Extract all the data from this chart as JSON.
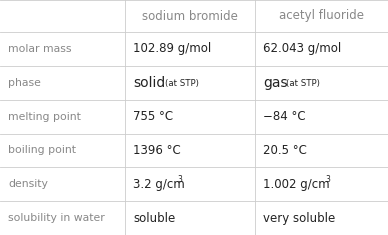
{
  "col_headers": [
    "",
    "sodium bromide",
    "acetyl fluoride"
  ],
  "rows": [
    {
      "label": "molar mass",
      "col1": "102.89 g/mol",
      "col2": "62.043 g/mol"
    },
    {
      "label": "phase",
      "col1": null,
      "col2": null
    },
    {
      "label": "melting point",
      "col1": "755 °C",
      "col2": "−84 °C"
    },
    {
      "label": "boiling point",
      "col1": "1396 °C",
      "col2": "20.5 °C"
    },
    {
      "label": "density",
      "col1": null,
      "col2": null
    },
    {
      "label": "solubility in water",
      "col1": "soluble",
      "col2": "very soluble"
    }
  ],
  "header_text_color": "#888888",
  "row_label_color": "#888888",
  "data_text_color": "#222222",
  "line_color": "#cccccc",
  "background_color": "#ffffff",
  "font_size_header": 8.5,
  "font_size_label": 7.8,
  "font_size_data": 8.5,
  "font_size_phase_big": 10.0,
  "font_size_phase_small": 6.2,
  "font_size_density_main": 8.5,
  "font_size_density_super": 5.5
}
